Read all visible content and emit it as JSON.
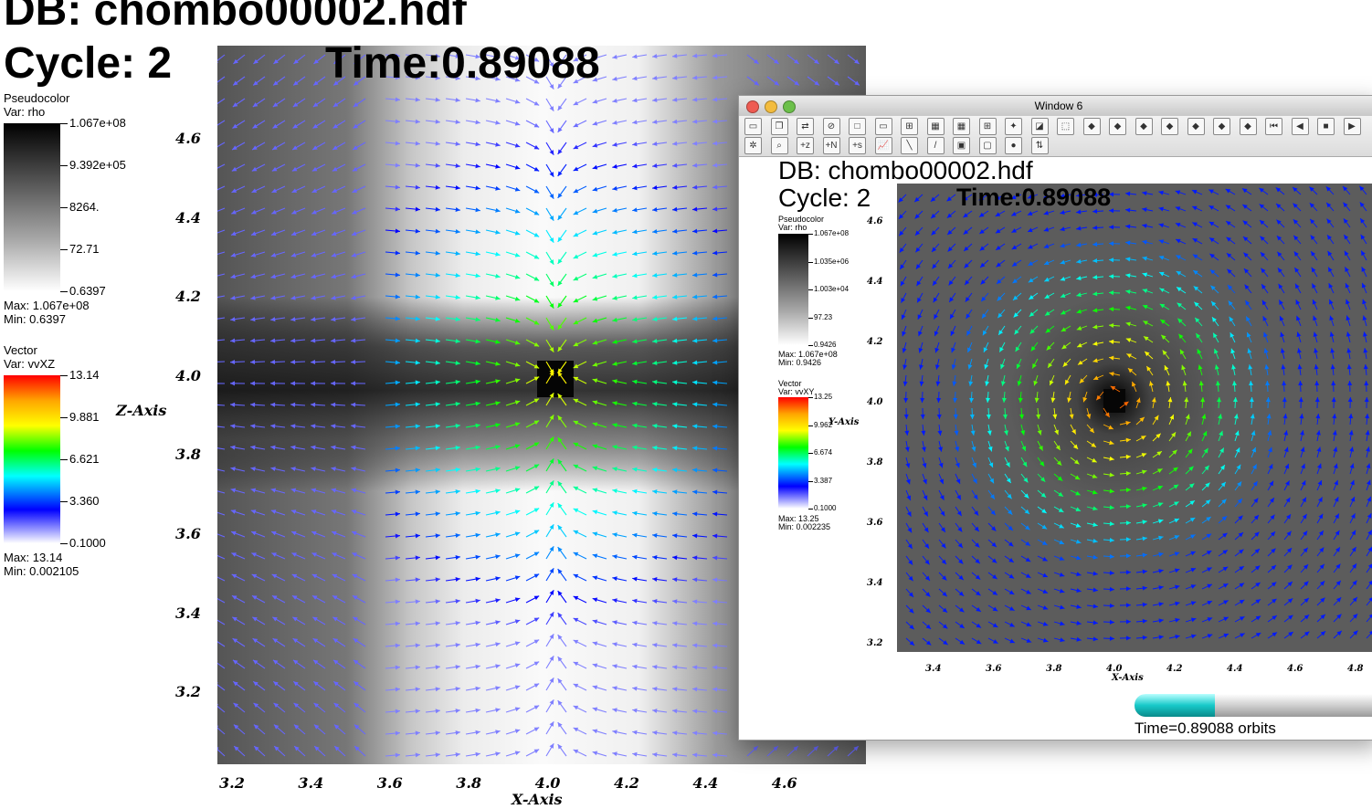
{
  "main": {
    "db_title": "DB: chombo00002.hdf",
    "cycle": "Cycle: 2",
    "time": "Time:0.89088",
    "pseudocolor": {
      "title": "Pseudocolor",
      "var": "Var: rho",
      "ticks": [
        "1.067e+08",
        "9.392e+05",
        "8264.",
        "72.71",
        "0.6397"
      ],
      "max": "Max:  1.067e+08",
      "min": "Min:  0.6397"
    },
    "vector": {
      "title": "Vector",
      "var": "Var: vvXZ",
      "ticks": [
        "13.14",
        "9.881",
        "6.621",
        "3.360",
        "0.1000"
      ],
      "max": "Max:  13.14",
      "min": "Min:  0.002105"
    },
    "x_axis_label": "X-Axis",
    "z_axis_label": "Z-Axis",
    "x_ticks": [
      "3.2",
      "3.4",
      "3.6",
      "3.8",
      "4.0",
      "4.2",
      "4.4",
      "4.6"
    ],
    "z_ticks": [
      "4.6",
      "4.4",
      "4.2",
      "4.0",
      "3.8",
      "3.6",
      "3.4",
      "3.2"
    ]
  },
  "window6": {
    "title": "Window 6",
    "db_title": "DB: chombo00002.hdf",
    "cycle": "Cycle: 2",
    "time": "Time:0.89088",
    "pseudocolor": {
      "title": "Pseudocolor",
      "var": "Var: rho",
      "ticks": [
        "1.067e+08",
        "1.035e+06",
        "1.003e+04",
        "97.23",
        "0.9426"
      ],
      "max": "Max:  1.067e+08",
      "min": "Min:  0.9426"
    },
    "vector": {
      "title": "Vector",
      "var": "Var: vvXY",
      "ticks": [
        "13.25",
        "9.962",
        "6.674",
        "3.387",
        "0.1000"
      ],
      "max": "Max:  13.25",
      "min": "Min:  0.002235"
    },
    "x_axis_label": "X-Axis",
    "y_axis_label": "Y-Axis",
    "x_ticks": [
      "3.4",
      "3.6",
      "3.8",
      "4.0",
      "4.2",
      "4.4",
      "4.6",
      "4.8"
    ],
    "y_ticks": [
      "4.6",
      "4.4",
      "4.2",
      "4.0",
      "3.8",
      "3.6",
      "3.4",
      "3.2"
    ],
    "time_slider_label": "Time=0.89088 orbits",
    "time_progress": 0.33,
    "toolbar_row1": [
      "new-window",
      "copy-window",
      "swap-window",
      "delete-window",
      "layout-1x1",
      "layout-1x2",
      "layout-2x2",
      "layout-2x3",
      "layout-2x4",
      "layout-3x3",
      "lock-view",
      "invert",
      "3d-box",
      "plot-a",
      "plot-b",
      "plot-c",
      "plot-d",
      "plot-e",
      "plot-f",
      "plot-g",
      "step-back",
      "play-back",
      "stop",
      "play"
    ],
    "toolbar_row2": [
      "navigate",
      "zoom",
      "pick-z",
      "pick-n",
      "pick-s",
      "lineout",
      "probe",
      "line-tool",
      "cube",
      "box",
      "sphere",
      "slider"
    ]
  },
  "colors": {
    "vector_scale": [
      "#ff0000",
      "#ffaa00",
      "#ffff00",
      "#00ff00",
      "#00ffff",
      "#0040ff",
      "#0000ff",
      "#ffffff"
    ],
    "slider_fill": "#17c9c9"
  }
}
